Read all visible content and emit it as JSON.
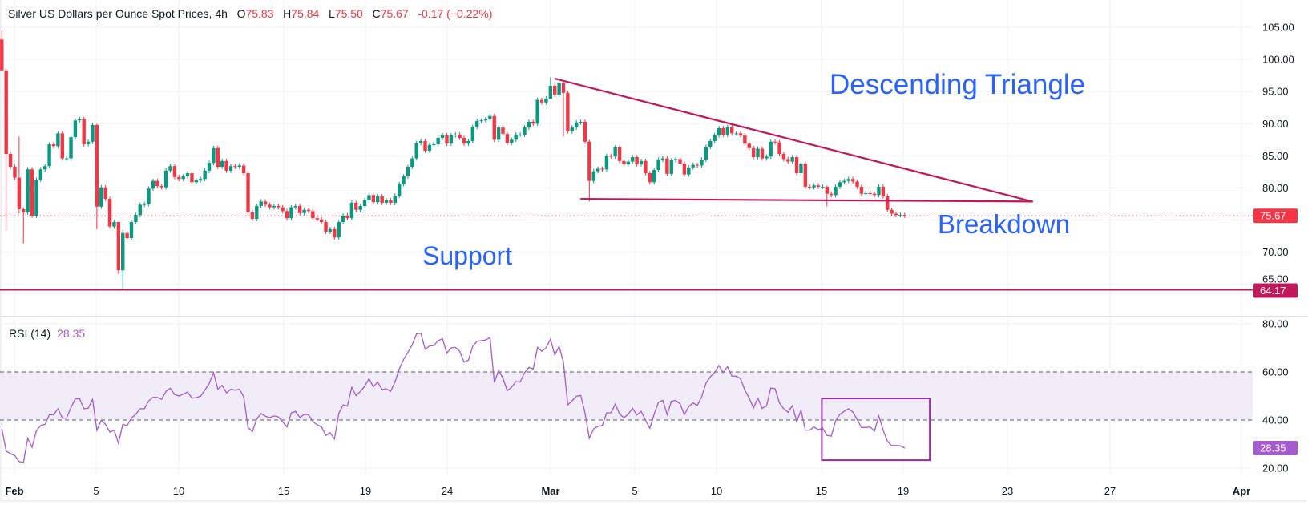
{
  "header": {
    "symbol": "Silver US Dollars per Ounce Spot Prices, 4h",
    "o_label": "O",
    "o": "75.83",
    "h_label": "H",
    "h": "75.84",
    "l_label": "L",
    "l": "75.50",
    "c_label": "C",
    "c": "75.67",
    "change": "-0.17 (−0.22%)"
  },
  "rsi_header": {
    "label": "RSI (14)",
    "value": "28.35"
  },
  "annotations": {
    "triangle": "Descending Triangle",
    "support": "Support",
    "breakdown": "Breakdown"
  },
  "axis": {
    "x_labels": [
      "Feb",
      "5",
      "10",
      "15",
      "19",
      "24",
      "Mar",
      "5",
      "10",
      "15",
      "19",
      "23",
      "27",
      "Apr"
    ],
    "price_labels": [
      "105.00",
      "100.00",
      "95.00",
      "90.00",
      "85.00",
      "80.00",
      "70.00",
      "65.00"
    ],
    "rsi_labels": [
      "80.00",
      "60.00",
      "40.00",
      "20.00"
    ],
    "last_price_tag": "75.67",
    "support_tag": "64.17",
    "rsi_tag": "28.35"
  },
  "colors": {
    "up": "#089981",
    "down": "#F23645",
    "trend": "#C2185B",
    "annotation": "#2962FF",
    "rsi": "#A55ACD",
    "rsi_box": "#9C27B0",
    "rsi_band": "#F0ECF8"
  },
  "chart_data": {
    "type": "candlestick",
    "title": "Silver US Dollars per Ounce Spot Prices, 4h",
    "ylim": [
      63,
      107
    ],
    "first_open": 103.1,
    "closes": [
      98.3,
      85.3,
      83.3,
      81.6,
      76.7,
      76.2,
      82.9,
      75.7,
      81.3,
      82.9,
      83.4,
      86.8,
      86.5,
      88.5,
      84.6,
      84.6,
      87.9,
      90.5,
      90.7,
      86.8,
      87.2,
      89.8,
      77.1,
      80.1,
      78.3,
      74.0,
      74.7,
      67.2,
      73.0,
      72.2,
      74.7,
      75.8,
      77.4,
      77.5,
      79.9,
      81.1,
      80.3,
      80.1,
      82.7,
      83.4,
      81.7,
      81.4,
      81.8,
      82.3,
      80.9,
      81.2,
      81.4,
      82.7,
      83.9,
      86.2,
      83.3,
      84.2,
      82.7,
      83.4,
      83.3,
      83.5,
      82.3,
      76.2,
      75.2,
      77.2,
      77.9,
      77.4,
      77.0,
      77.2,
      77.0,
      76.4,
      75.3,
      77.0,
      77.2,
      76.1,
      76.6,
      76.4,
      75.3,
      75.1,
      74.7,
      73.2,
      73.6,
      72.3,
      74.7,
      75.7,
      75.3,
      77.7,
      76.6,
      77.2,
      78.1,
      78.9,
      77.8,
      78.7,
      77.7,
      78.1,
      77.7,
      78.8,
      80.6,
      81.8,
      83.3,
      84.6,
      87.0,
      87.3,
      85.8,
      86.7,
      86.8,
      87.8,
      88.2,
      86.9,
      88.2,
      88.3,
      87.8,
      86.9,
      87.3,
      89.5,
      90.4,
      90.5,
      90.7,
      91.2,
      87.5,
      89.4,
      88.4,
      87.0,
      87.5,
      88.3,
      88.3,
      89.4,
      90.3,
      90.0,
      93.7,
      93.3,
      93.9,
      95.9,
      94.5,
      96.3,
      94.8,
      88.8,
      89.4,
      90.2,
      90.3,
      87.2,
      81.1,
      82.6,
      83.0,
      82.9,
      85.0,
      84.9,
      86.3,
      84.2,
      83.7,
      84.1,
      84.8,
      83.7,
      84.2,
      82.3,
      80.9,
      82.8,
      84.4,
      84.6,
      82.2,
      84.3,
      84.5,
      83.8,
      82.1,
      83.2,
      83.6,
      83.5,
      84.4,
      86.4,
      87.3,
      88.2,
      89.3,
      88.3,
      89.5,
      88.5,
      88.5,
      88.2,
      86.9,
      86.2,
      84.8,
      86.1,
      84.6,
      84.9,
      87.2,
      87.1,
      85.3,
      84.5,
      84.1,
      84.8,
      82.3,
      83.8,
      80.2,
      80.1,
      80.4,
      80.2,
      80.2,
      79.1,
      78.9,
      80.2,
      80.9,
      81.1,
      81.4,
      81.0,
      80.2,
      79.1,
      79.2,
      79.1,
      78.9,
      80.2,
      78.7,
      76.6,
      76.0,
      75.8,
      75.8,
      75.67
    ],
    "wick_extremes": {
      "0": [
        104.5,
        98.3
      ],
      "1": [
        98.5,
        73.3
      ],
      "4": [
        88.0,
        76.0
      ],
      "5": [
        77.0,
        71.4
      ],
      "22": [
        90.0,
        73.6
      ],
      "27": [
        74.5,
        66.6
      ],
      "28": [
        73.5,
        64.2
      ],
      "127": [
        97.2,
        95.5
      ],
      "130": [
        96.6,
        88.0
      ],
      "136": [
        87.5,
        77.9
      ],
      "191": [
        80.4,
        77.1
      ]
    },
    "last_price": 75.67,
    "support_level": 64.17,
    "trendlines": {
      "upper": [
        [
          128.1,
          97.0
        ],
        [
          238.5,
          77.9
        ]
      ],
      "lower": [
        [
          134.1,
          78.3
        ],
        [
          238.5,
          77.9
        ]
      ]
    },
    "rsi": {
      "period": 14,
      "ylim": [
        20,
        80
      ],
      "band": [
        40,
        60
      ],
      "values": [
        36.3,
        27.1,
        26.0,
        25.2,
        22.7,
        22.4,
        32.4,
        28.6,
        35.6,
        37.7,
        38.2,
        42.2,
        42.2,
        44.7,
        40.8,
        40.8,
        45.2,
        48.8,
        48.9,
        44.7,
        44.9,
        48.6,
        35.8,
        39.9,
        38.2,
        34.9,
        35.8,
        30.4,
        38.2,
        37.7,
        40.8,
        42.4,
        44.7,
        44.7,
        48.0,
        49.4,
        49.4,
        48.6,
        51.9,
        53.2,
        50.6,
        50.0,
        50.8,
        51.6,
        49.1,
        49.3,
        49.9,
        52.4,
        55.2,
        59.7,
        52.8,
        54.4,
        51.3,
        52.8,
        52.4,
        52.8,
        49.7,
        36.9,
        35.2,
        40.4,
        42.7,
        41.6,
        41.0,
        41.7,
        41.3,
        39.3,
        37.1,
        43.0,
        43.6,
        41.0,
        42.4,
        42.2,
        39.3,
        38.0,
        37.1,
        33.6,
        34.7,
        32.1,
        42.7,
        46.3,
        45.8,
        53.6,
        50.2,
        51.9,
        54.1,
        57.2,
        53.8,
        55.8,
        52.7,
        53.0,
        51.9,
        55.8,
        61.3,
        65.2,
        68.2,
        71.3,
        75.8,
        76.1,
        69.4,
        70.8,
        71.0,
        73.0,
        73.8,
        67.8,
        70.0,
        70.2,
        68.6,
        64.1,
        64.9,
        70.6,
        72.8,
        73.0,
        73.3,
        74.3,
        55.6,
        60.6,
        57.4,
        52.2,
        53.6,
        56.0,
        55.8,
        59.7,
        61.9,
        61.3,
        70.2,
        68.6,
        70.0,
        73.6,
        67.1,
        70.6,
        64.1,
        46.3,
        48.0,
        49.9,
        50.2,
        43.0,
        32.4,
        36.3,
        37.4,
        37.7,
        43.0,
        43.0,
        46.6,
        42.4,
        41.0,
        42.4,
        44.9,
        42.1,
        43.6,
        39.9,
        36.6,
        42.4,
        47.4,
        48.2,
        42.2,
        47.8,
        48.2,
        46.7,
        42.2,
        45.6,
        47.1,
        46.1,
        49.7,
        55.4,
        58.0,
        59.7,
        62.7,
        59.7,
        62.2,
        58.3,
        58.2,
        57.2,
        52.4,
        49.1,
        45.0,
        49.1,
        44.9,
        45.8,
        53.3,
        53.0,
        47.1,
        44.7,
        43.2,
        46.0,
        39.3,
        44.1,
        35.8,
        35.8,
        37.1,
        36.0,
        36.6,
        33.6,
        33.3,
        39.7,
        42.4,
        43.6,
        44.7,
        43.3,
        40.2,
        36.9,
        36.9,
        37.1,
        35.4,
        41.7,
        35.8,
        31.1,
        29.4,
        29.4,
        29.3,
        28.35
      ],
      "highlight_box": {
        "from_index": 190,
        "to_index": 215,
        "rsi_range": [
          23.3,
          49
        ]
      }
    }
  }
}
